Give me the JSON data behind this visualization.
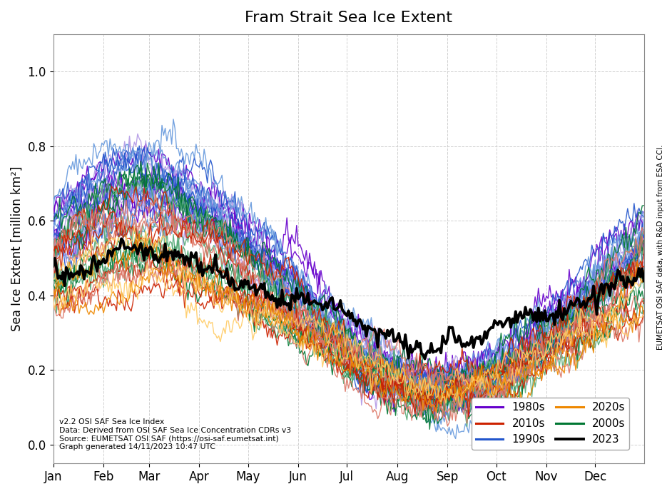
{
  "title": "Fram Strait Sea Ice Extent",
  "ylabel": "Sea Ice Extent [million km²]",
  "ylim": [
    -0.05,
    1.1
  ],
  "yticks": [
    0.0,
    0.2,
    0.4,
    0.6,
    0.8,
    1.0
  ],
  "months": [
    "Jan",
    "Feb",
    "Mar",
    "Apr",
    "May",
    "Jun",
    "Jul",
    "Aug",
    "Sep",
    "Oct",
    "Nov",
    "Dec"
  ],
  "annotation": "v2.2 OSI SAF Sea Ice Index\nData: Derived from OSI SAF Sea Ice Concentration CDRs v3\nSource: EUMETSAT OSI SAF (https://osi-saf.eumetsat.int)\nGraph generated 14/11/2023 10:47 UTC",
  "right_label": "EUMETSAT OSI SAF data, with R&D input from ESA CCI.",
  "decade_colors": {
    "1980s": "#6600cc",
    "1980s_light": "#b399e6",
    "1990s": "#2255cc",
    "1990s_light": "#6699dd",
    "2000s": "#007733",
    "2000s_light": "#55aa77",
    "2010s": "#cc2200",
    "2010s_light": "#dd7766",
    "2020s": "#ee8800",
    "2020s_light": "#ffcc66",
    "2023": "#000000"
  },
  "background_color": "#ffffff",
  "grid_color": "#cccccc"
}
